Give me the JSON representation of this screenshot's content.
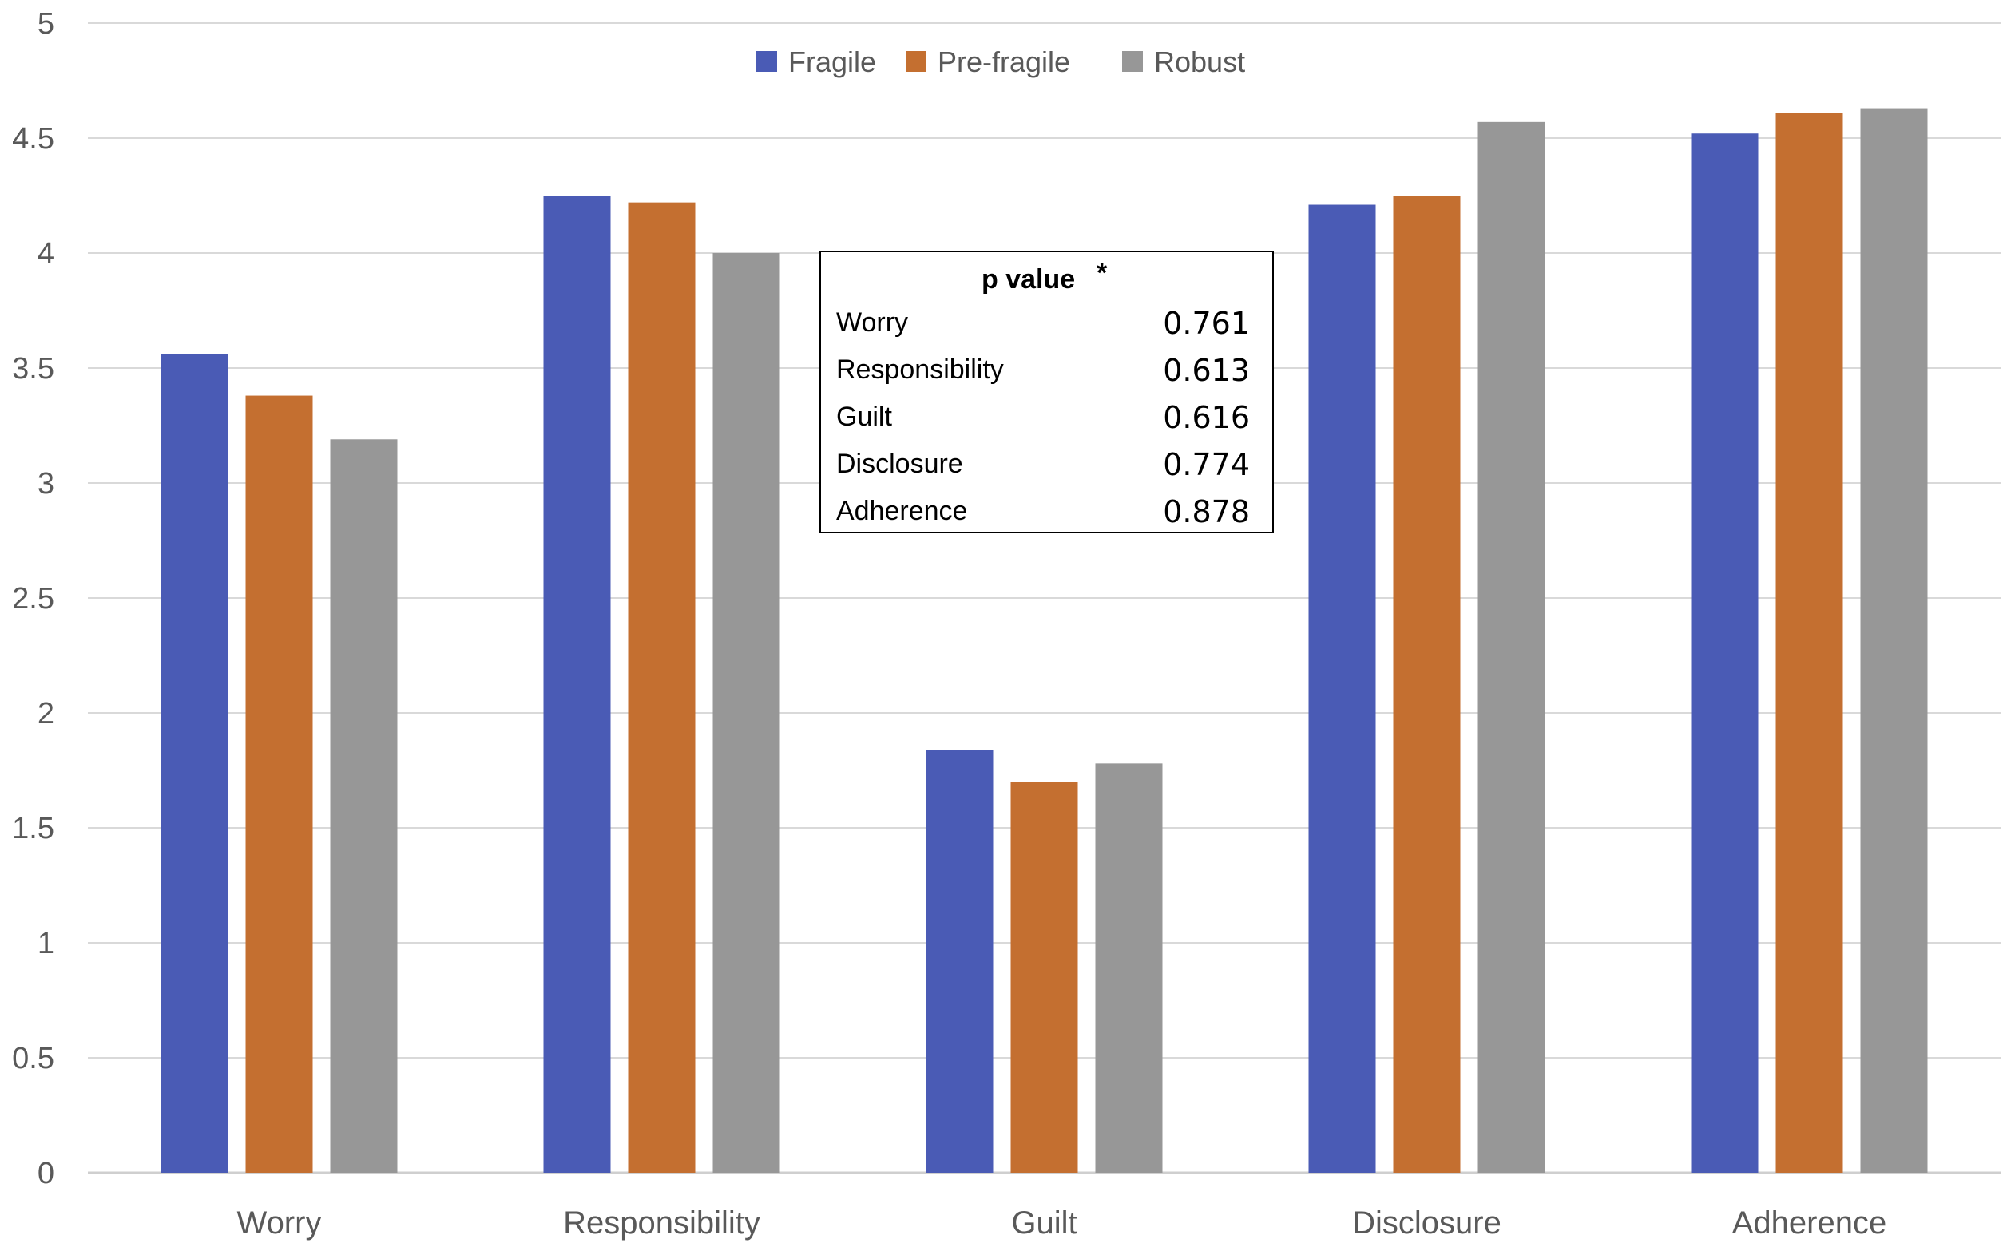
{
  "chart_data": {
    "type": "bar",
    "categories": [
      "Worry",
      "Responsibility",
      "Guilt",
      "Disclosure",
      "Adherence"
    ],
    "series": [
      {
        "name": "Fragile",
        "color": "#4a5bb5",
        "values": [
          3.56,
          4.25,
          1.84,
          4.21,
          4.52
        ]
      },
      {
        "name": "Pre-fragile",
        "color": "#c46f30",
        "values": [
          3.38,
          4.22,
          1.7,
          4.25,
          4.61
        ]
      },
      {
        "name": "Robust",
        "color": "#979797",
        "values": [
          3.19,
          4.0,
          1.78,
          4.57,
          4.63
        ]
      }
    ],
    "ylim": [
      0,
      5
    ],
    "yticks": [
      0,
      0.5,
      1,
      1.5,
      2,
      2.5,
      3,
      3.5,
      4,
      4.5,
      5
    ],
    "ytick_labels": [
      "0",
      "0.5",
      "1",
      "1.5",
      "2",
      "2.5",
      "3",
      "3.5",
      "4",
      "4.5",
      "5"
    ],
    "grid": true,
    "legend_position": "top-center",
    "title": "",
    "xlabel": "",
    "ylabel": ""
  },
  "p_table": {
    "title": "p value",
    "title_marker": "*",
    "rows": [
      {
        "name": "Worry",
        "value": "0.761"
      },
      {
        "name": "Responsibility",
        "value": "0.613"
      },
      {
        "name": "Guilt",
        "value": "0.616"
      },
      {
        "name": "Disclosure",
        "value": "0.774"
      },
      {
        "name": "Adherence",
        "value": "0.878"
      }
    ]
  }
}
